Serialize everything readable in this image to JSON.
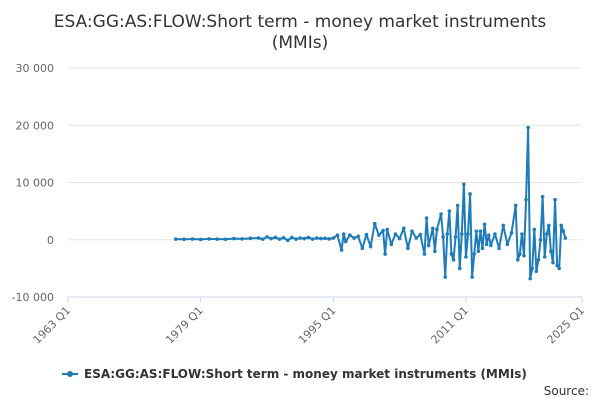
{
  "chart_data": {
    "type": "line",
    "title_line1": "ESA:GG:AS:FLOW:Short term - money market instruments",
    "title_line2": "(MMIs)",
    "xlabel": "",
    "ylabel": "",
    "xlim": [
      1963,
      2025
    ],
    "ylim": [
      -10000,
      30000
    ],
    "x_ticks": [
      "1963 Q1",
      "1979 Q1",
      "1995 Q1",
      "2011 Q1",
      "2025 Q1"
    ],
    "x_tick_values": [
      1963,
      1979,
      1995,
      2011,
      2025
    ],
    "y_ticks": [
      "30 000",
      "20 000",
      "10 000",
      "0",
      "-10 000"
    ],
    "y_tick_values": [
      30000,
      20000,
      10000,
      0,
      -10000
    ],
    "grid": "horizontal",
    "legend_position": "bottom",
    "source_label": "Source:",
    "series": [
      {
        "name": "ESA:GG:AS:FLOW:Short term - money market instruments (MMIs)",
        "color": "#1f7cb8",
        "points": [
          [
            1976.0,
            100
          ],
          [
            1977.0,
            80
          ],
          [
            1978.0,
            120
          ],
          [
            1979.0,
            60
          ],
          [
            1980.0,
            150
          ],
          [
            1981.0,
            100
          ],
          [
            1982.0,
            80
          ],
          [
            1983.0,
            200
          ],
          [
            1984.0,
            150
          ],
          [
            1985.0,
            250
          ],
          [
            1986.0,
            300
          ],
          [
            1986.5,
            100
          ],
          [
            1987.0,
            500
          ],
          [
            1987.5,
            200
          ],
          [
            1988.0,
            400
          ],
          [
            1988.5,
            100
          ],
          [
            1989.0,
            350
          ],
          [
            1989.5,
            -100
          ],
          [
            1990.0,
            400
          ],
          [
            1990.5,
            100
          ],
          [
            1991.0,
            300
          ],
          [
            1991.5,
            200
          ],
          [
            1992.0,
            400
          ],
          [
            1992.5,
            100
          ],
          [
            1993.0,
            300
          ],
          [
            1993.5,
            200
          ],
          [
            1994.0,
            250
          ],
          [
            1994.5,
            150
          ],
          [
            1995.0,
            300
          ],
          [
            1995.5,
            800
          ],
          [
            1996.0,
            -1800
          ],
          [
            1996.25,
            1000
          ],
          [
            1996.5,
            -300
          ],
          [
            1997.0,
            800
          ],
          [
            1997.5,
            300
          ],
          [
            1998.0,
            600
          ],
          [
            1998.5,
            -1500
          ],
          [
            1999.0,
            900
          ],
          [
            1999.5,
            -1200
          ],
          [
            2000.0,
            2800
          ],
          [
            2000.5,
            800
          ],
          [
            2001.0,
            1600
          ],
          [
            2001.25,
            -2500
          ],
          [
            2001.5,
            1800
          ],
          [
            2002.0,
            -800
          ],
          [
            2002.5,
            1000
          ],
          [
            2003.0,
            200
          ],
          [
            2003.5,
            2000
          ],
          [
            2004.0,
            -1500
          ],
          [
            2004.5,
            1500
          ],
          [
            2005.0,
            300
          ],
          [
            2005.5,
            900
          ],
          [
            2006.0,
            -2500
          ],
          [
            2006.25,
            3800
          ],
          [
            2006.5,
            -1000
          ],
          [
            2007.0,
            2000
          ],
          [
            2007.25,
            -2000
          ],
          [
            2007.5,
            1800
          ],
          [
            2008.0,
            4500
          ],
          [
            2008.25,
            500
          ],
          [
            2008.5,
            -6500
          ],
          [
            2008.75,
            1000
          ],
          [
            2009.0,
            5000
          ],
          [
            2009.25,
            -2500
          ],
          [
            2009.5,
            -3500
          ],
          [
            2009.75,
            500
          ],
          [
            2010.0,
            6000
          ],
          [
            2010.25,
            -5000
          ],
          [
            2010.5,
            1000
          ],
          [
            2010.75,
            9700
          ],
          [
            2011.0,
            -3000
          ],
          [
            2011.25,
            1000
          ],
          [
            2011.5,
            8000
          ],
          [
            2011.75,
            -6500
          ],
          [
            2012.0,
            -2500
          ],
          [
            2012.25,
            1500
          ],
          [
            2012.5,
            -2000
          ],
          [
            2012.75,
            1500
          ],
          [
            2013.0,
            -1500
          ],
          [
            2013.25,
            2700
          ],
          [
            2013.5,
            -800
          ],
          [
            2013.75,
            800
          ],
          [
            2014.0,
            -1000
          ],
          [
            2014.5,
            1000
          ],
          [
            2015.0,
            -1500
          ],
          [
            2015.5,
            2500
          ],
          [
            2016.0,
            -800
          ],
          [
            2016.5,
            1200
          ],
          [
            2017.0,
            6000
          ],
          [
            2017.25,
            -3500
          ],
          [
            2017.5,
            -2500
          ],
          [
            2017.75,
            1000
          ],
          [
            2018.0,
            -2800
          ],
          [
            2018.25,
            7000
          ],
          [
            2018.5,
            19600
          ],
          [
            2018.75,
            -6800
          ],
          [
            2019.0,
            -5000
          ],
          [
            2019.25,
            1800
          ],
          [
            2019.5,
            -5500
          ],
          [
            2019.75,
            -3500
          ],
          [
            2020.0,
            0
          ],
          [
            2020.25,
            7500
          ],
          [
            2020.5,
            -3000
          ],
          [
            2020.75,
            1000
          ],
          [
            2021.0,
            2500
          ],
          [
            2021.25,
            -2000
          ],
          [
            2021.5,
            -4000
          ],
          [
            2021.75,
            7000
          ],
          [
            2022.0,
            -4500
          ],
          [
            2022.25,
            -5000
          ],
          [
            2022.5,
            2500
          ],
          [
            2022.75,
            1500
          ],
          [
            2023.0,
            300
          ]
        ]
      }
    ]
  }
}
